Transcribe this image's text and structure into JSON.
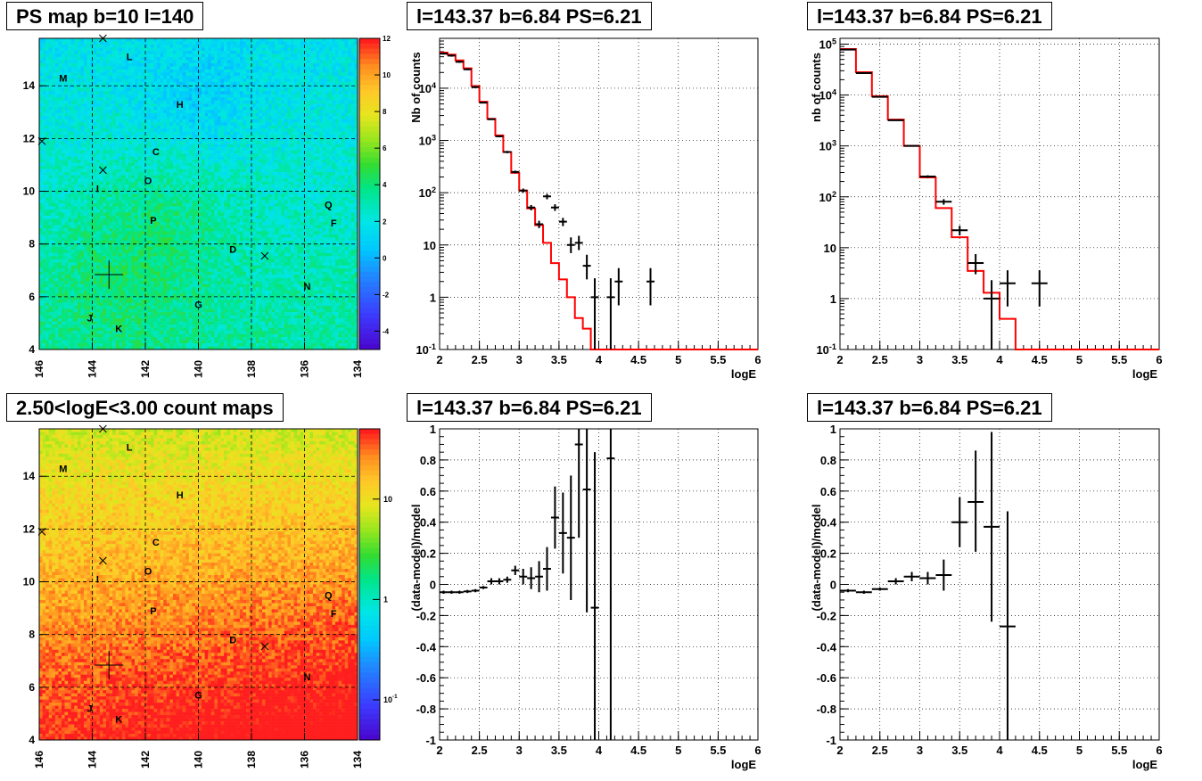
{
  "titles": {
    "ps_map": "PS map b=10 l=140",
    "spec1": "l=143.37 b=6.84 PS=6.21",
    "spec2": "l=143.37 b=6.84 PS=6.21",
    "count_map": "2.50<logE<3.00 count maps",
    "res1": "l=143.37 b=6.84 PS=6.21",
    "res2": "l=143.37 b=6.84 PS=6.21"
  },
  "map_axes": {
    "x_ticks": [
      "146",
      "144",
      "142",
      "140",
      "138",
      "136",
      "134"
    ],
    "y_ticks": [
      "4",
      "6",
      "8",
      "10",
      "12",
      "14"
    ],
    "x_range": [
      146,
      134
    ],
    "y_range": [
      4,
      15.8
    ]
  },
  "sources": [
    {
      "label": "L",
      "l": 142.6,
      "b": 15.1
    },
    {
      "label": "M",
      "l": 145.1,
      "b": 14.3
    },
    {
      "label": "H",
      "l": 140.7,
      "b": 13.3
    },
    {
      "label": "C",
      "l": 141.6,
      "b": 11.5
    },
    {
      "label": "O",
      "l": 141.9,
      "b": 10.4
    },
    {
      "label": "I",
      "l": 143.8,
      "b": 10.1
    },
    {
      "label": "Q",
      "l": 135.1,
      "b": 9.5
    },
    {
      "label": "P",
      "l": 141.7,
      "b": 8.9
    },
    {
      "label": "F",
      "l": 134.9,
      "b": 8.8
    },
    {
      "label": "D",
      "l": 138.7,
      "b": 7.8
    },
    {
      "label": "N",
      "l": 135.9,
      "b": 6.4
    },
    {
      "label": "G",
      "l": 140.0,
      "b": 5.7
    },
    {
      "label": "J",
      "l": 144.1,
      "b": 5.2
    },
    {
      "label": "K",
      "l": 143.0,
      "b": 4.8
    }
  ],
  "crosses": [
    {
      "l": 143.6,
      "b": 15.8
    },
    {
      "l": 143.6,
      "b": 10.8
    },
    {
      "l": 137.5,
      "b": 7.55
    },
    {
      "l": 145.9,
      "b": 11.9
    }
  ],
  "big_cross": {
    "l": 143.37,
    "b": 6.84
  },
  "colorbar_ps": {
    "ticks": [
      "12",
      "10",
      "8",
      "6",
      "4",
      "2",
      "0",
      "-2",
      "-4"
    ],
    "min": -5,
    "max": 12
  },
  "colorbar_counts": {
    "ticks": [
      "10",
      "1",
      "10-1"
    ],
    "tick_values": [
      10,
      1,
      0.1
    ],
    "log_min": -1.4,
    "log_max": 1.7
  },
  "chart_data": [
    {
      "type": "line",
      "name": "spectrum-left",
      "xlabel": "logE",
      "ylabel": "Nb of counts",
      "xlim": [
        2,
        6
      ],
      "ylim": [
        0.1,
        90000
      ],
      "log_y": true,
      "x_ticks": [
        "2",
        "2.5",
        "3",
        "3.5",
        "4",
        "4.5",
        "5",
        "5.5",
        "6"
      ],
      "y_ticks": [
        {
          "v": 0.1,
          "t": "10-1"
        },
        {
          "v": 1,
          "t": "1"
        },
        {
          "v": 10,
          "t": "10"
        },
        {
          "v": 100,
          "t": "102"
        },
        {
          "v": 1000,
          "t": "103"
        },
        {
          "v": 10000,
          "t": "104"
        }
      ],
      "model_bin_width": 0.1,
      "model": [
        48000,
        44000,
        34000,
        24000,
        11000,
        5500,
        2600,
        1250,
        600,
        240,
        110,
        50,
        24,
        11,
        4.5,
        2.2,
        1.0,
        0.4,
        0.25,
        0.1,
        0.1,
        0.1,
        0.1,
        0.1,
        0.1,
        0.1,
        0.1,
        0.1,
        0.1,
        0.1,
        0.1,
        0.1,
        0.1,
        0.1,
        0.1,
        0.1,
        0.1,
        0.1,
        0.1,
        0.1
      ],
      "data_points": [
        {
          "x": 2.05,
          "y": 46000,
          "lo": 44000,
          "hi": 48000,
          "xerr": 0.05
        },
        {
          "x": 2.15,
          "y": 42000,
          "lo": 40000,
          "hi": 44000,
          "xerr": 0.05
        },
        {
          "x": 2.25,
          "y": 32000,
          "lo": 30500,
          "hi": 33500,
          "xerr": 0.05
        },
        {
          "x": 2.35,
          "y": 23000,
          "lo": 22000,
          "hi": 24000,
          "xerr": 0.05
        },
        {
          "x": 2.45,
          "y": 10500,
          "lo": 10000,
          "hi": 11000,
          "xerr": 0.05
        },
        {
          "x": 2.55,
          "y": 5300,
          "lo": 5100,
          "hi": 5500,
          "xerr": 0.05
        },
        {
          "x": 2.65,
          "y": 2550,
          "lo": 2450,
          "hi": 2650,
          "xerr": 0.05
        },
        {
          "x": 2.75,
          "y": 1200,
          "lo": 1150,
          "hi": 1250,
          "xerr": 0.05
        },
        {
          "x": 2.85,
          "y": 600,
          "lo": 570,
          "hi": 630,
          "xerr": 0.05
        },
        {
          "x": 2.95,
          "y": 250,
          "lo": 235,
          "hi": 265,
          "xerr": 0.05
        },
        {
          "x": 3.05,
          "y": 110,
          "lo": 100,
          "hi": 120,
          "xerr": 0.05
        },
        {
          "x": 3.15,
          "y": 52,
          "lo": 46,
          "hi": 58,
          "xerr": 0.05
        },
        {
          "x": 3.25,
          "y": 25,
          "lo": 21,
          "hi": 29,
          "xerr": 0.05
        },
        {
          "x": 3.35,
          "y": 85,
          "lo": 75,
          "hi": 95,
          "xerr": 0.05
        },
        {
          "x": 3.45,
          "y": 52,
          "lo": 45,
          "hi": 60,
          "xerr": 0.05
        },
        {
          "x": 3.55,
          "y": 28,
          "lo": 23,
          "hi": 33,
          "xerr": 0.05
        },
        {
          "x": 3.65,
          "y": 10,
          "lo": 7,
          "hi": 14,
          "xerr": 0.05
        },
        {
          "x": 3.75,
          "y": 11,
          "lo": 8,
          "hi": 15,
          "xerr": 0.05
        },
        {
          "x": 3.85,
          "y": 4,
          "lo": 2.2,
          "hi": 6.5,
          "xerr": 0.05
        },
        {
          "x": 3.95,
          "y": 1,
          "lo": 0.1,
          "hi": 2.3,
          "xerr": 0.05
        },
        {
          "x": 4.15,
          "y": 1,
          "lo": 0.1,
          "hi": 2.3,
          "xerr": 0.05
        },
        {
          "x": 4.25,
          "y": 2,
          "lo": 0.7,
          "hi": 3.6,
          "xerr": 0.05
        },
        {
          "x": 4.65,
          "y": 2,
          "lo": 0.7,
          "hi": 3.6,
          "xerr": 0.05
        }
      ]
    },
    {
      "type": "line",
      "name": "spectrum-right",
      "xlabel": "logE",
      "ylabel": "nb of counts",
      "xlim": [
        2,
        6
      ],
      "ylim": [
        0.1,
        130000
      ],
      "log_y": true,
      "x_ticks": [
        "2",
        "2.5",
        "3",
        "3.5",
        "4",
        "4.5",
        "5",
        "5.5",
        "6"
      ],
      "y_ticks": [
        {
          "v": 0.1,
          "t": "10-1"
        },
        {
          "v": 1,
          "t": "1"
        },
        {
          "v": 10,
          "t": "10"
        },
        {
          "v": 100,
          "t": "102"
        },
        {
          "v": 1000,
          "t": "103"
        },
        {
          "v": 10000,
          "t": "104"
        },
        {
          "v": 100000,
          "t": "105"
        }
      ],
      "model_bin_width": 0.2,
      "model": [
        80000,
        28000,
        9500,
        3300,
        1000,
        240,
        60,
        16,
        3.5,
        1.3,
        0.4,
        0.1,
        0.1,
        0.1,
        0.1,
        0.1,
        0.1,
        0.1,
        0.1,
        0.1
      ],
      "data_points": [
        {
          "x": 2.1,
          "y": 78000,
          "lo": 75000,
          "hi": 81000,
          "xerr": 0.1
        },
        {
          "x": 2.3,
          "y": 27000,
          "lo": 26000,
          "hi": 28000,
          "xerr": 0.1
        },
        {
          "x": 2.5,
          "y": 9200,
          "lo": 8900,
          "hi": 9500,
          "xerr": 0.1
        },
        {
          "x": 2.7,
          "y": 3200,
          "lo": 3100,
          "hi": 3300,
          "xerr": 0.1
        },
        {
          "x": 2.9,
          "y": 1000,
          "lo": 960,
          "hi": 1040,
          "xerr": 0.1
        },
        {
          "x": 3.1,
          "y": 250,
          "lo": 235,
          "hi": 265,
          "xerr": 0.1
        },
        {
          "x": 3.3,
          "y": 80,
          "lo": 70,
          "hi": 90,
          "xerr": 0.1
        },
        {
          "x": 3.5,
          "y": 22,
          "lo": 17.5,
          "hi": 27,
          "xerr": 0.1
        },
        {
          "x": 3.7,
          "y": 5,
          "lo": 3,
          "hi": 7.5,
          "xerr": 0.1
        },
        {
          "x": 3.9,
          "y": 1,
          "lo": 0.1,
          "hi": 2.3,
          "xerr": 0.1
        },
        {
          "x": 4.1,
          "y": 2,
          "lo": 0.7,
          "hi": 3.6,
          "xerr": 0.1
        },
        {
          "x": 4.5,
          "y": 2,
          "lo": 0.7,
          "hi": 3.6,
          "xerr": 0.1
        }
      ]
    },
    {
      "type": "scatter",
      "name": "residual-left",
      "xlabel": "logE",
      "ylabel": "(data-model)/model",
      "xlim": [
        2,
        6
      ],
      "ylim": [
        -1,
        1
      ],
      "x_ticks": [
        "2",
        "2.5",
        "3",
        "3.5",
        "4",
        "4.5",
        "5",
        "5.5",
        "6"
      ],
      "y_ticks": [
        "-1",
        "-0.8",
        "-0.6",
        "-0.4",
        "-0.2",
        "0",
        "0.2",
        "0.4",
        "0.6",
        "0.8",
        "1"
      ],
      "data_points": [
        {
          "x": 2.05,
          "y": -0.05,
          "lo": -0.06,
          "hi": -0.04,
          "xerr": 0.05
        },
        {
          "x": 2.15,
          "y": -0.05,
          "lo": -0.06,
          "hi": -0.04,
          "xerr": 0.05
        },
        {
          "x": 2.25,
          "y": -0.05,
          "lo": -0.06,
          "hi": -0.04,
          "xerr": 0.05
        },
        {
          "x": 2.35,
          "y": -0.045,
          "lo": -0.055,
          "hi": -0.035,
          "xerr": 0.05
        },
        {
          "x": 2.45,
          "y": -0.04,
          "lo": -0.05,
          "hi": -0.03,
          "xerr": 0.05
        },
        {
          "x": 2.55,
          "y": -0.02,
          "lo": -0.03,
          "hi": -0.01,
          "xerr": 0.05
        },
        {
          "x": 2.65,
          "y": 0.02,
          "lo": 0.0,
          "hi": 0.04,
          "xerr": 0.05
        },
        {
          "x": 2.75,
          "y": 0.02,
          "lo": 0.0,
          "hi": 0.04,
          "xerr": 0.05
        },
        {
          "x": 2.85,
          "y": 0.03,
          "lo": 0.01,
          "hi": 0.05,
          "xerr": 0.05
        },
        {
          "x": 2.95,
          "y": 0.09,
          "lo": 0.06,
          "hi": 0.12,
          "xerr": 0.05
        },
        {
          "x": 3.05,
          "y": 0.05,
          "lo": 0.0,
          "hi": 0.1,
          "xerr": 0.05
        },
        {
          "x": 3.15,
          "y": 0.04,
          "lo": -0.03,
          "hi": 0.11,
          "xerr": 0.05
        },
        {
          "x": 3.25,
          "y": 0.05,
          "lo": -0.05,
          "hi": 0.15,
          "xerr": 0.05
        },
        {
          "x": 3.35,
          "y": 0.1,
          "lo": -0.04,
          "hi": 0.24,
          "xerr": 0.05
        },
        {
          "x": 3.45,
          "y": 0.43,
          "lo": 0.23,
          "hi": 0.63,
          "xerr": 0.05
        },
        {
          "x": 3.55,
          "y": 0.33,
          "lo": 0.07,
          "hi": 0.59,
          "xerr": 0.05
        },
        {
          "x": 3.65,
          "y": 0.3,
          "lo": -0.1,
          "hi": 0.7,
          "xerr": 0.05
        },
        {
          "x": 3.75,
          "y": 0.9,
          "lo": 0.3,
          "hi": 1.1,
          "xerr": 0.05
        },
        {
          "x": 3.85,
          "y": 0.61,
          "lo": -0.18,
          "hi": 1.1,
          "xerr": 0.05
        },
        {
          "x": 3.95,
          "y": -0.15,
          "lo": -1.1,
          "hi": 0.85,
          "xerr": 0.05
        },
        {
          "x": 4.15,
          "y": 0.81,
          "lo": -1.1,
          "hi": 1.1,
          "xerr": 0.05
        }
      ]
    },
    {
      "type": "scatter",
      "name": "residual-right",
      "xlabel": "logE",
      "ylabel": "(data-model)/model",
      "xlim": [
        2,
        6
      ],
      "ylim": [
        -1,
        1
      ],
      "x_ticks": [
        "2",
        "2.5",
        "3",
        "3.5",
        "4",
        "4.5",
        "5",
        "5.5",
        "6"
      ],
      "y_ticks": [
        "-1",
        "-0.8",
        "-0.6",
        "-0.4",
        "-0.2",
        "0",
        "0.2",
        "0.4",
        "0.6",
        "0.8",
        "1"
      ],
      "data_points": [
        {
          "x": 2.1,
          "y": -0.04,
          "lo": -0.05,
          "hi": -0.03,
          "xerr": 0.1
        },
        {
          "x": 2.3,
          "y": -0.05,
          "lo": -0.06,
          "hi": -0.04,
          "xerr": 0.1
        },
        {
          "x": 2.5,
          "y": -0.03,
          "lo": -0.04,
          "hi": -0.02,
          "xerr": 0.1
        },
        {
          "x": 2.7,
          "y": 0.02,
          "lo": 0.0,
          "hi": 0.04,
          "xerr": 0.1
        },
        {
          "x": 2.9,
          "y": 0.05,
          "lo": 0.02,
          "hi": 0.08,
          "xerr": 0.1
        },
        {
          "x": 3.1,
          "y": 0.04,
          "lo": 0.0,
          "hi": 0.08,
          "xerr": 0.1
        },
        {
          "x": 3.3,
          "y": 0.06,
          "lo": -0.04,
          "hi": 0.16,
          "xerr": 0.1
        },
        {
          "x": 3.5,
          "y": 0.4,
          "lo": 0.24,
          "hi": 0.56,
          "xerr": 0.1
        },
        {
          "x": 3.7,
          "y": 0.53,
          "lo": 0.21,
          "hi": 0.86,
          "xerr": 0.1
        },
        {
          "x": 3.9,
          "y": 0.37,
          "lo": -0.24,
          "hi": 0.98,
          "xerr": 0.1
        },
        {
          "x": 4.1,
          "y": -0.27,
          "lo": -1.1,
          "hi": 0.47,
          "xerr": 0.1
        }
      ]
    }
  ]
}
